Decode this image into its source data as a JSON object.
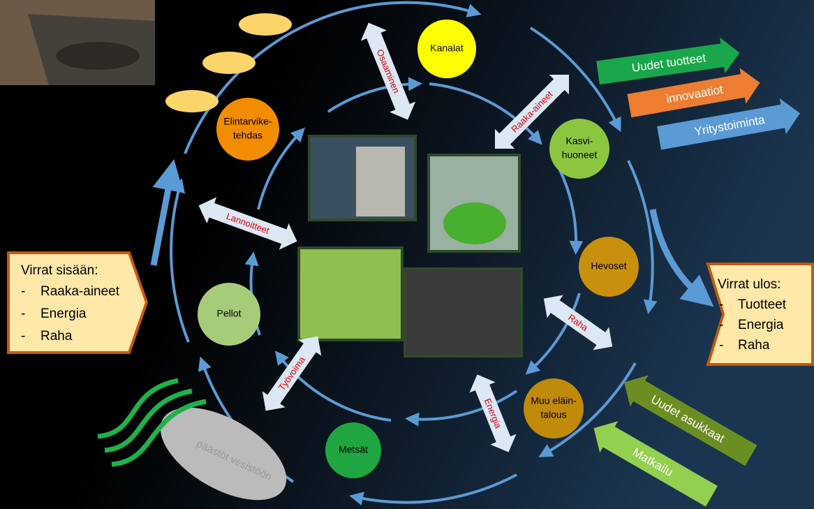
{
  "nodes": [
    {
      "lines": [
        "Kanalat"
      ]
    },
    {
      "lines": [
        "Elintarvike-",
        "tehdas"
      ]
    },
    {
      "lines": [
        "Kasvi-",
        "huoneet"
      ]
    },
    {
      "lines": [
        "Hevoset"
      ]
    },
    {
      "lines": [
        "Muu eläin-",
        "talous"
      ]
    },
    {
      "lines": [
        "Metsät"
      ]
    },
    {
      "lines": [
        "Pellot"
      ]
    }
  ],
  "exchanges": [
    "Osaaminen",
    "Raaka-aineet",
    "Lannoitteet",
    "Raha",
    "Energia",
    "Työvoima"
  ],
  "outputs": [
    "Uudet tuotteet",
    "innovaatiot",
    "Yritystoiminta"
  ],
  "incoming": [
    "Uudet asukkaat",
    "Matkailu"
  ],
  "inputs_box": {
    "title": "Virrat sisään:",
    "items": [
      "Raaka-aineet",
      "Energia",
      "Raha"
    ]
  },
  "outputs_box": {
    "title": "Virrat ulos:",
    "items": [
      "Tuotteet",
      "Energia",
      "Raha"
    ]
  },
  "emissions": "päästöt vesistöön"
}
